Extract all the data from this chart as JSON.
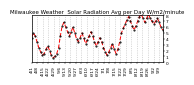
{
  "title": "Milwaukee Weather  Solar Radiation Avg per Day W/m2/minute",
  "y_values": [
    4.2,
    5.0,
    4.5,
    3.5,
    2.5,
    1.8,
    1.2,
    1.5,
    2.2,
    2.8,
    2.0,
    1.2,
    0.8,
    1.0,
    1.5,
    2.5,
    4.5,
    6.2,
    6.8,
    6.0,
    5.2,
    4.5,
    5.2,
    6.0,
    5.0,
    4.0,
    3.5,
    4.2,
    5.0,
    4.2,
    3.2,
    3.8,
    4.5,
    5.2,
    4.5,
    3.5,
    2.8,
    3.5,
    4.2,
    3.5,
    2.5,
    1.8,
    1.2,
    1.8,
    2.5,
    3.2,
    2.2,
    1.5,
    2.2,
    3.5,
    5.0,
    5.8,
    6.5,
    7.2,
    7.8,
    7.0,
    6.2,
    5.5,
    6.2,
    7.0,
    7.8,
    8.2,
    7.5,
    6.8,
    7.5,
    8.2,
    7.5,
    7.0,
    6.5,
    7.0,
    7.5,
    6.8,
    6.0,
    5.5
  ],
  "x_labels": [
    "4/1",
    "4/8",
    "4/15",
    "4/22",
    "4/29",
    "5/6",
    "5/13",
    "5/20",
    "5/27",
    "6/3",
    "6/10",
    "6/17",
    "6/24",
    "7/1",
    "7/8",
    "7/15",
    "7/22",
    "7/29",
    "8/5",
    "8/12",
    "8/19",
    "8/26",
    "9/2",
    "9/9"
  ],
  "line_color": "#ff0000",
  "marker_color": "#000000",
  "bg_color": "#ffffff",
  "plot_bg": "#ffffff",
  "ylim": [
    0,
    8
  ],
  "yticks": [
    0,
    1,
    2,
    3,
    4,
    5,
    6,
    7,
    8
  ],
  "title_fontsize": 4.0,
  "tick_fontsize": 3.2,
  "grid_color": "#bbbbbb",
  "num_grid_lines": 24
}
